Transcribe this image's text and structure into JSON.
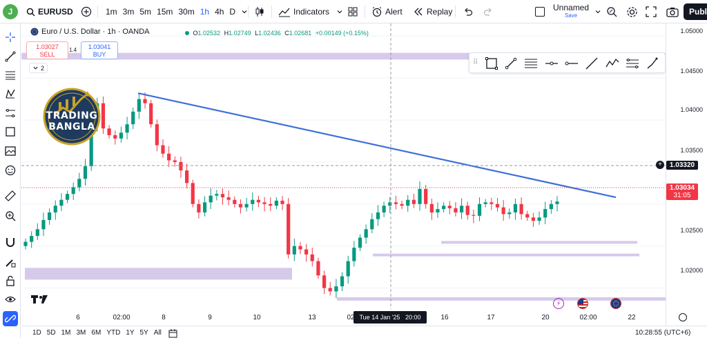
{
  "user": {
    "avatar_letter": "J"
  },
  "toolbar": {
    "symbol": "EURUSD",
    "timeframes": [
      "1m",
      "3m",
      "5m",
      "15m",
      "30m",
      "1h",
      "4h",
      "D"
    ],
    "active_timeframe": "1h",
    "indicators_label": "Indicators",
    "alert_label": "Alert",
    "replay_label": "Replay",
    "layout_name": "Unnamed",
    "layout_status": "Save",
    "publish_label": "Publ"
  },
  "legend": {
    "title": "Euro / U.S. Dollar · 1h · OANDA",
    "open_key": "O",
    "open": "1.02532",
    "high_key": "H",
    "high": "1.02749",
    "low_key": "L",
    "low": "1.02436",
    "close_key": "C",
    "close": "1.02681",
    "change": "+0.00149 (+0.15%)",
    "indicators_count": "2"
  },
  "trade": {
    "sell_price": "1.03027",
    "sell_label": "SELL",
    "spread": "1.4",
    "buy_price": "1.03041",
    "buy_label": "BUY"
  },
  "watermark": {
    "line1": "TRADING",
    "line2": "BANGLA"
  },
  "price_axis": {
    "labels": [
      "1.05000",
      "1.04500",
      "1.04000",
      "1.03500",
      "1.03000",
      "1.02500",
      "1.02000"
    ],
    "crosshair_price": "1.03320",
    "current_price": "1.03034",
    "countdown": "31:05"
  },
  "time_axis": {
    "labels": [
      "6",
      "02:00",
      "8",
      "9",
      "10",
      "13",
      "02",
      "16",
      "17",
      "20",
      "02:00",
      "22"
    ],
    "crosshair_time": "Tue 14 Jan '25   20:00"
  },
  "bottom": {
    "ranges": [
      "1D",
      "5D",
      "1M",
      "3M",
      "6M",
      "YTD",
      "1Y",
      "5Y",
      "All"
    ],
    "clock": "10:28:55 (UTC+6)"
  },
  "colors": {
    "up": "#089981",
    "down": "#f23645",
    "zone": "#d1c4e9",
    "trendline": "#3d6fd8",
    "accent": "#2962ff"
  },
  "chart_data": {
    "type": "candlestick",
    "symbol": "EURUSD",
    "interval": "1h",
    "ylim": [
      1.0175,
      1.0515
    ],
    "trendline": {
      "from": [
        1.0432
      ],
      "to": [
        1.0308
      ]
    },
    "zones": [
      {
        "price_top": 1.048,
        "price_bottom": 1.0472
      },
      {
        "price_top": 1.0224,
        "price_bottom": 1.021
      },
      {
        "price_top": 1.0256,
        "price_bottom": 1.0253
      },
      {
        "price_top": 1.0241,
        "price_bottom": 1.0238
      },
      {
        "price_top": 1.0189,
        "price_bottom": 1.0185
      }
    ],
    "closes": [
      1.0255,
      1.0262,
      1.027,
      1.0281,
      1.029,
      1.0298,
      1.0305,
      1.0312,
      1.032,
      1.033,
      1.0345,
      1.0395,
      1.042,
      1.039,
      1.0382,
      1.0378,
      1.0385,
      1.0395,
      1.041,
      1.0425,
      1.042,
      1.0395,
      1.037,
      1.036,
      1.0352,
      1.035,
      1.034,
      1.0325,
      1.03,
      1.029,
      1.0302,
      1.031,
      1.0312,
      1.0308,
      1.0305,
      1.03,
      1.0296,
      1.03,
      1.0305,
      1.0302,
      1.03,
      1.0298,
      1.0304,
      1.03,
      1.024,
      1.025,
      1.0246,
      1.024,
      1.0232,
      1.0215,
      1.02,
      1.0196,
      1.0202,
      1.0214,
      1.0232,
      1.0248,
      1.026,
      1.027,
      1.0282,
      1.029,
      1.0298,
      1.0302,
      1.03,
      1.0298,
      1.0305,
      1.03,
      1.0318,
      1.03,
      1.029,
      1.0294,
      1.0298,
      1.0295,
      1.029,
      1.0298,
      1.0287,
      1.0286,
      1.03,
      1.0302,
      1.03,
      1.0296,
      1.0288,
      1.029,
      1.03,
      1.0288,
      1.0284,
      1.028,
      1.0284,
      1.0294,
      1.03,
      1.0303
    ]
  }
}
